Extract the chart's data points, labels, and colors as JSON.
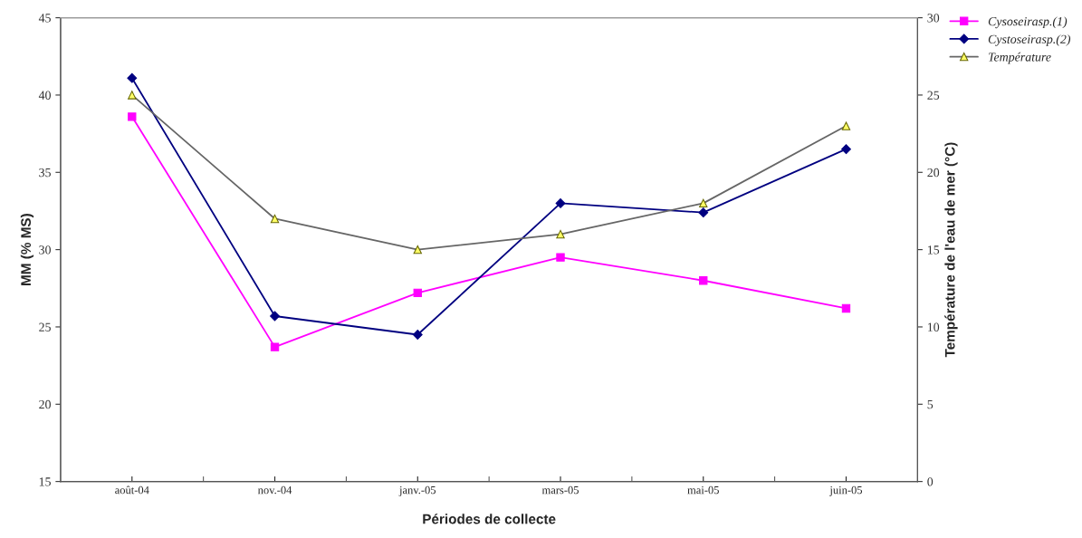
{
  "chart_data": {
    "type": "line",
    "xlabel": "Périodes de collecte",
    "ylabel": "MM (% MS)",
    "y2label": "Température de l'eau de mer (°C)",
    "categories": [
      "août-04",
      "nov.-04",
      "janv.-05",
      "mars-05",
      "mai-05",
      "juin-05"
    ],
    "series": [
      {
        "name": "Cysoseirasp.(1)",
        "color": "#ff00ff",
        "marker": "square",
        "values": [
          38.6,
          23.7,
          27.2,
          29.5,
          28.0,
          26.2
        ]
      },
      {
        "name": "Cystoseirasp.(2)",
        "color": "#000080",
        "marker": "diamond",
        "values": [
          41.1,
          25.7,
          24.5,
          33.0,
          32.4,
          36.5
        ]
      },
      {
        "name": "Température",
        "color": "#666666",
        "marker": "triangle",
        "axis": "y2",
        "values": [
          25,
          17,
          15,
          16,
          18,
          23
        ]
      }
    ],
    "ylim": [
      15,
      45
    ],
    "yticks": [
      15,
      20,
      25,
      30,
      35,
      40,
      45
    ],
    "y2lim": [
      0,
      30
    ],
    "y2ticks": [
      0,
      5,
      10,
      15,
      20,
      25,
      30
    ],
    "grid": false,
    "legend": "top right",
    "line_style": "solid"
  }
}
